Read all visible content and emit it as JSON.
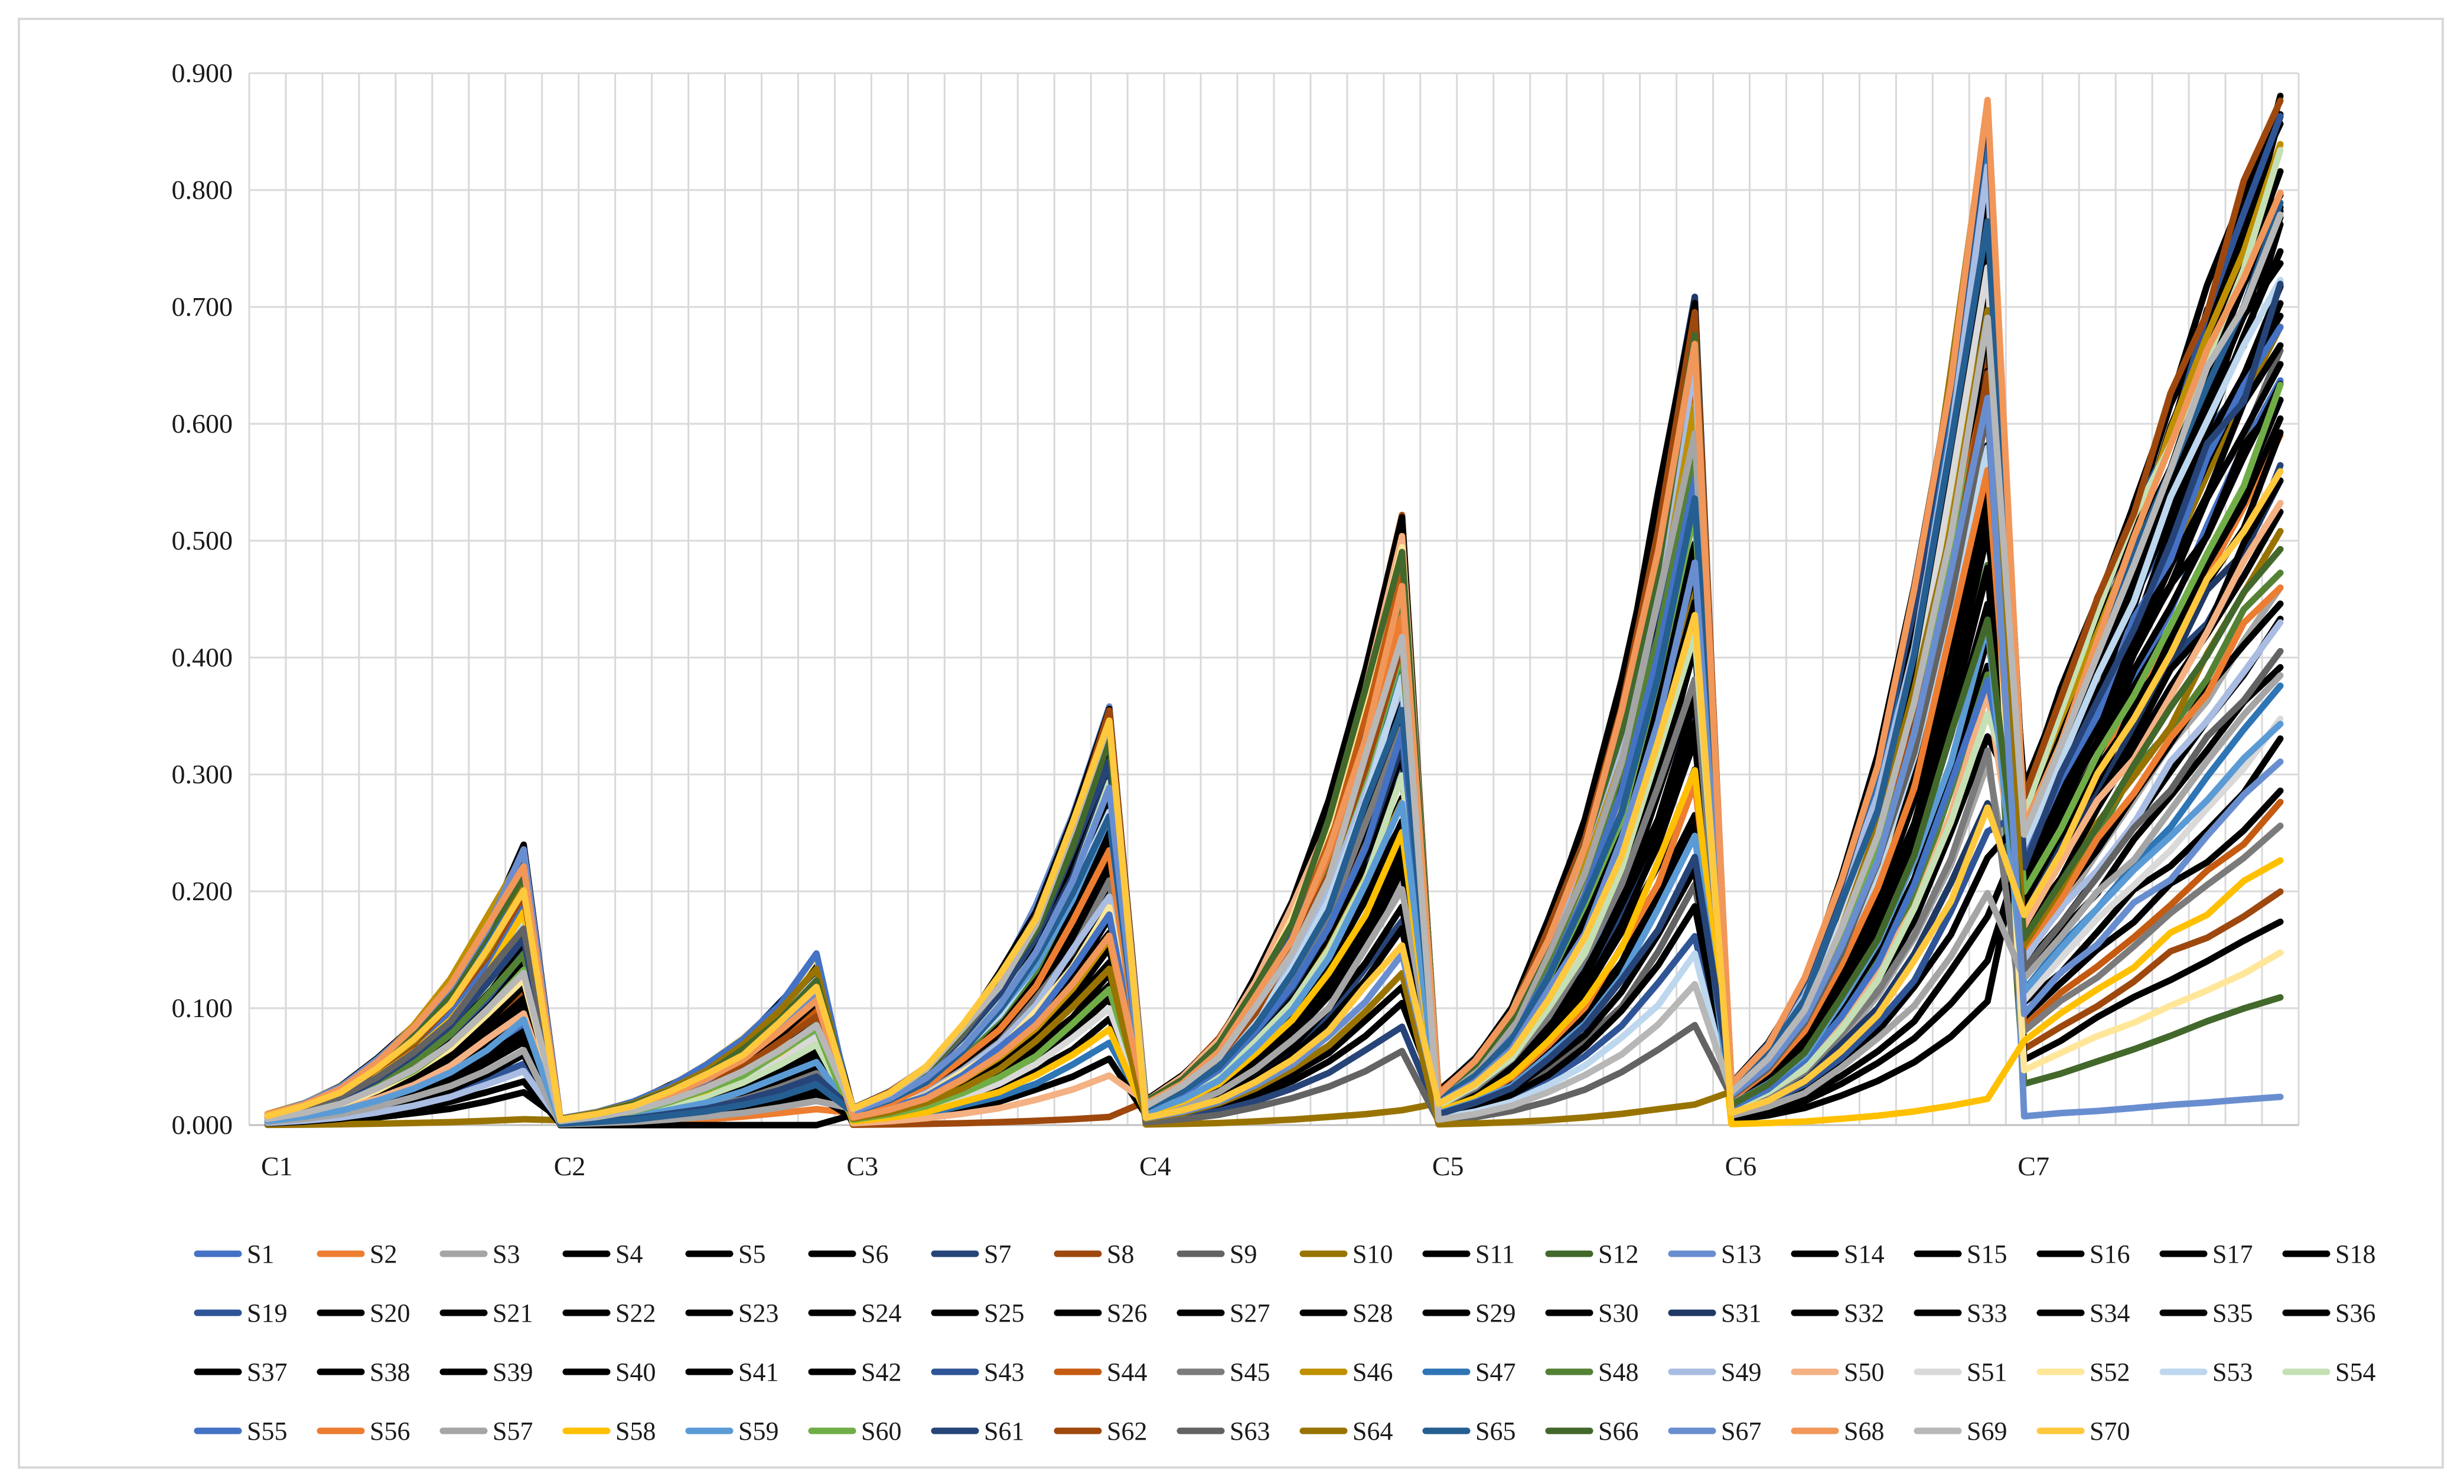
{
  "chart_data": {
    "type": "line",
    "title": "",
    "xlabel": "",
    "ylabel": "",
    "ylim": [
      0,
      0.9
    ],
    "y_ticks": [
      "0.000",
      "0.100",
      "0.200",
      "0.300",
      "0.400",
      "0.500",
      "0.600",
      "0.700",
      "0.800",
      "0.900"
    ],
    "group_labels": [
      "C1",
      "C2",
      "C3",
      "C4",
      "C5",
      "C6",
      "C7"
    ],
    "points_per_group": 8,
    "grid": true,
    "legend_position": "bottom",
    "series_names": [
      "S1",
      "S2",
      "S3",
      "S4",
      "S5",
      "S6",
      "S7",
      "S8",
      "S9",
      "S10",
      "S11",
      "S12",
      "S13",
      "S14",
      "S15",
      "S16",
      "S17",
      "S18",
      "S19",
      "S20",
      "S21",
      "S22",
      "S23",
      "S24",
      "S25",
      "S26",
      "S27",
      "S28",
      "S29",
      "S30",
      "S31",
      "S32",
      "S33",
      "S34",
      "S35",
      "S36",
      "S37",
      "S38",
      "S39",
      "S40",
      "S41",
      "S42",
      "S43",
      "S44",
      "S45",
      "S46",
      "S47",
      "S48",
      "S49",
      "S50",
      "S51",
      "S52",
      "S53",
      "S54",
      "S55",
      "S56",
      "S57",
      "S58",
      "S59",
      "S60",
      "S61",
      "S62",
      "S63",
      "S64",
      "S65",
      "S66",
      "S67",
      "S68",
      "S69",
      "S70"
    ],
    "series_colors": [
      "#4472c4",
      "#ed7d31",
      "#a5a5a5",
      "#000000",
      "#000000",
      "#000000",
      "#264478",
      "#9e480e",
      "#636363",
      "#997300",
      "#000000",
      "#43682b",
      "#698ed0",
      "#000000",
      "#000000",
      "#000000",
      "#000000",
      "#000000",
      "#2f5597",
      "#000000",
      "#000000",
      "#000000",
      "#000000",
      "#000000",
      "#000000",
      "#000000",
      "#000000",
      "#000000",
      "#000000",
      "#000000",
      "#203864",
      "#000000",
      "#000000",
      "#000000",
      "#000000",
      "#000000",
      "#000000",
      "#000000",
      "#000000",
      "#000000",
      "#000000",
      "#000000",
      "#2f5597",
      "#c55a11",
      "#7b7b7b",
      "#bf9000",
      "#2e75b6",
      "#548235",
      "#a9bce2",
      "#f4b183",
      "#d9d9d9",
      "#ffe699",
      "#bdd7ee",
      "#c5e0b4",
      "#4472c4",
      "#ed7d31",
      "#a5a5a5",
      "#ffc000",
      "#5b9bd5",
      "#70ad47",
      "#264478",
      "#9e480e",
      "#636363",
      "#997300",
      "#255e91",
      "#43682b",
      "#698ed0",
      "#f1975a",
      "#b7b7b7",
      "#ffc83d"
    ],
    "peak_values_by_group": [
      {
        "group": "C1",
        "min_peak": 0.005,
        "max_peak": 0.235
      },
      {
        "group": "C2",
        "min_peak": 0.0,
        "max_peak": 0.143
      },
      {
        "group": "C3",
        "min_peak": 0.007,
        "max_peak": 0.358
      },
      {
        "group": "C4",
        "min_peak": 0.013,
        "max_peak": 0.522
      },
      {
        "group": "C5",
        "min_peak": 0.018,
        "max_peak": 0.718
      },
      {
        "group": "C6",
        "min_peak": 0.022,
        "max_peak": 0.876
      },
      {
        "group": "C7",
        "min_peak": 0.024,
        "max_peak": 0.885
      }
    ]
  }
}
